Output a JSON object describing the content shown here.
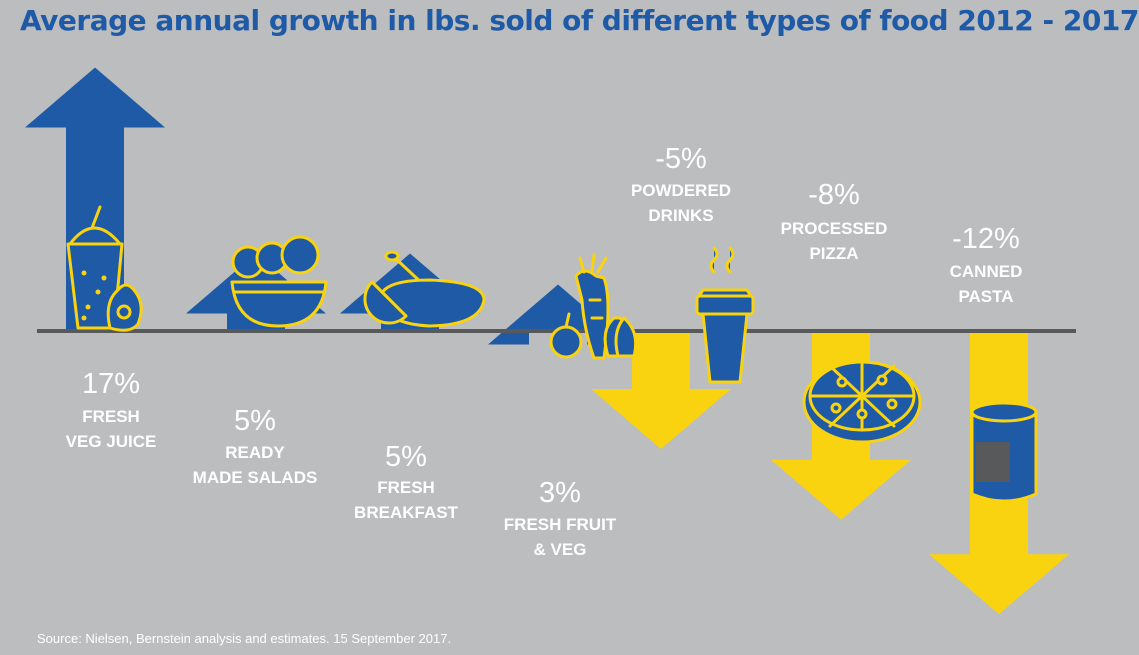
{
  "title": "Average annual growth in lbs. sold of different types of food 2012 - 2017",
  "source": "Source: Nielsen, Bernstein analysis and estimates. 15 September 2017.",
  "colors": {
    "background": "#bcbdbf",
    "positive": "#1f5aa6",
    "negative": "#f9d30f",
    "icon_outline": "#f9d30f",
    "icon_fill": "#1f5aa6",
    "baseline": "#58595b",
    "text": "#ffffff"
  },
  "chart_data": {
    "type": "bar",
    "title": "Average annual growth in lbs. sold of different types of food 2012 - 2017",
    "unit": "%",
    "categories": [
      "FRESH VEG JUICE",
      "READY MADE SALADS",
      "FRESH BREAKFAST",
      "FRESH FRUIT & VEG",
      "POWDERED DRINKS",
      "PROCESSED PIZZA",
      "CANNED PASTA"
    ],
    "values": [
      17,
      5,
      5,
      3,
      -5,
      -8,
      -12
    ],
    "value_labels": [
      "17%",
      "5%",
      "5%",
      "3%",
      "-5%",
      "-8%",
      "-12%"
    ],
    "label_lines": [
      [
        "FRESH",
        "VEG JUICE"
      ],
      [
        "READY",
        "MADE SALADS"
      ],
      [
        "FRESH",
        "BREAKFAST"
      ],
      [
        "FRESH FRUIT",
        "& VEG"
      ],
      [
        "POWDERED",
        "DRINKS"
      ],
      [
        "PROCESSED",
        "PIZZA"
      ],
      [
        "CANNED",
        "PASTA"
      ]
    ],
    "icons": [
      "juice-avocado-icon",
      "salad-bowl-icon",
      "breakfast-plate-icon",
      "fruit-veg-icon",
      "coffee-cup-icon",
      "pizza-icon",
      "can-icon"
    ]
  }
}
